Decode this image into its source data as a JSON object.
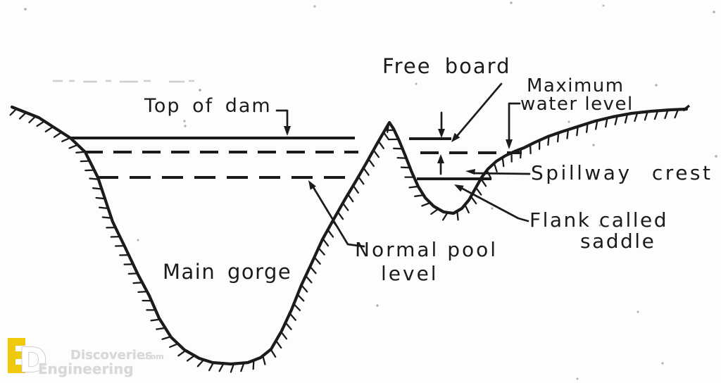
{
  "diagram": {
    "type": "engineering-sketch",
    "subject": "Cross-section of a dam site valley profile with main gorge and saddle",
    "labels": {
      "top_of_dam": "Top of dam",
      "free_board": "Free board",
      "maximum_water_level_line1": "Maximum",
      "maximum_water_level_line2": "water level",
      "spillway_crest": "Spillway crest",
      "flank_called_saddle_line1": "Flank called",
      "flank_called_saddle_line2": "saddle",
      "normal_pool_level_line1": "Normal pool",
      "normal_pool_level_line2": "level",
      "main_gorge": "Main gorge"
    },
    "colors": {
      "ink": "#1b1b1b",
      "paper": "#fdfdfd",
      "watermark-yellow": "#eec90c",
      "watermark-gray": "#d8d8d8"
    }
  },
  "watermark": {
    "logo": "engineering-discoveries-logo",
    "brand_top": "Discoveries",
    "brand_top_suffix": ".com",
    "brand_bottom": "Engineering"
  }
}
